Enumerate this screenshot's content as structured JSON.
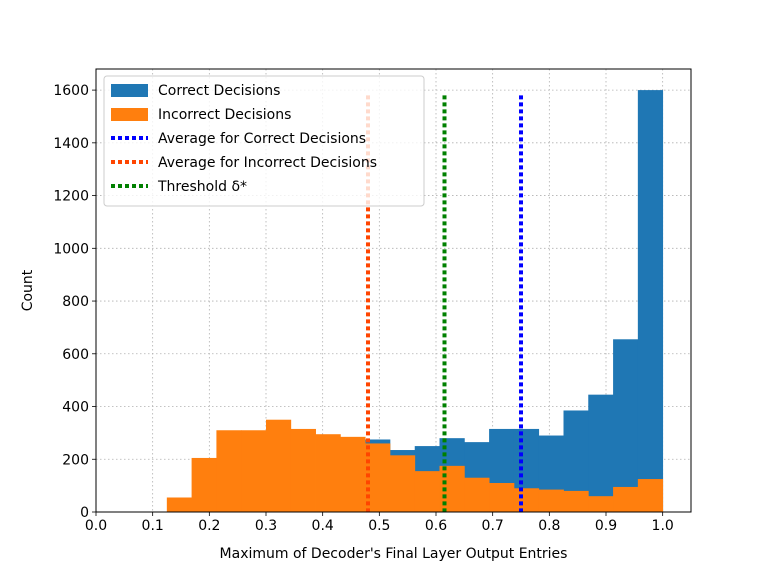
{
  "chart_data": {
    "type": "bar",
    "title": "",
    "xlabel": "Maximum of Decoder's Final Layer Output Entries",
    "ylabel": "Count",
    "xlim": [
      0.0,
      1.05
    ],
    "ylim": [
      0,
      1680
    ],
    "xticks": [
      "0.0",
      "0.1",
      "0.2",
      "0.3",
      "0.4",
      "0.5",
      "0.6",
      "0.7",
      "0.8",
      "0.9",
      "1.0"
    ],
    "yticks": [
      "0",
      "200",
      "400",
      "600",
      "800",
      "1000",
      "1200",
      "1400",
      "1600"
    ],
    "grid": true,
    "legend_position": "top-left",
    "bin_edges": [
      0.125,
      0.1687,
      0.2125,
      0.2562,
      0.3,
      0.3437,
      0.3875,
      0.4312,
      0.475,
      0.5187,
      0.5625,
      0.6062,
      0.65,
      0.6937,
      0.7375,
      0.7812,
      0.825,
      0.8687,
      0.9125,
      0.9562,
      1.0
    ],
    "series": [
      {
        "name": "Correct Decisions",
        "color": "#1f77b4",
        "values": [
          0,
          0,
          0,
          0,
          0,
          0,
          0,
          0,
          275,
          235,
          250,
          280,
          265,
          315,
          315,
          290,
          385,
          445,
          655,
          1600
        ]
      },
      {
        "name": "Incorrect Decisions",
        "color": "#ff7f0e",
        "values": [
          55,
          205,
          310,
          310,
          350,
          315,
          295,
          285,
          260,
          215,
          155,
          175,
          130,
          110,
          90,
          85,
          80,
          60,
          95,
          125
        ]
      }
    ],
    "reference_lines": [
      {
        "name": "Average for Correct Decisions",
        "x": 0.75,
        "color": "#0000ff",
        "style": "dotted"
      },
      {
        "name": "Average for Incorrect Decisions",
        "x": 0.48,
        "color": "#ff4500",
        "style": "dotted"
      },
      {
        "name": "Threshold δ*",
        "x": 0.615,
        "color": "#008000",
        "style": "dotted"
      }
    ],
    "legend": [
      {
        "label": "Correct Decisions",
        "kind": "patch",
        "color": "#1f77b4"
      },
      {
        "label": "Incorrect Decisions",
        "kind": "patch",
        "color": "#ff7f0e"
      },
      {
        "label": "Average for Correct Decisions",
        "kind": "dotted",
        "color": "#0000ff"
      },
      {
        "label": "Average for Incorrect Decisions",
        "kind": "dotted",
        "color": "#ff4500"
      },
      {
        "label": "Threshold δ*",
        "kind": "dotted",
        "color": "#008000"
      }
    ]
  }
}
